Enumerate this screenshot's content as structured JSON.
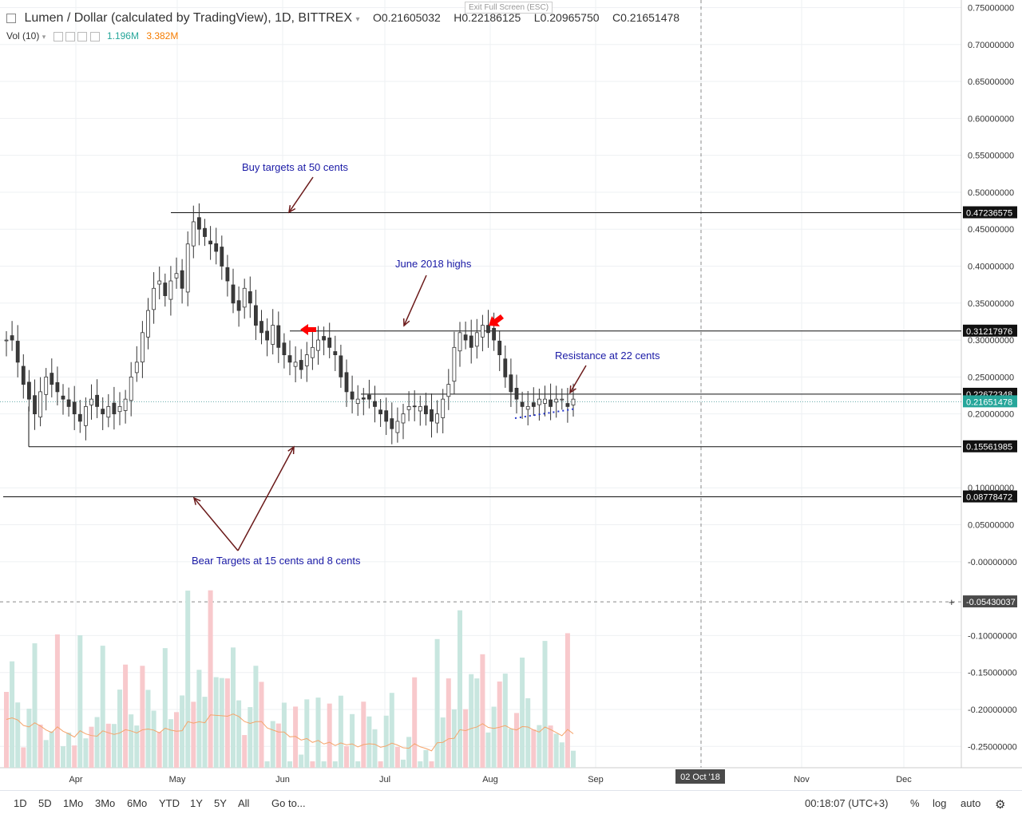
{
  "header": {
    "symbol": "Lumen / Dollar (calculated by TradingView), 1D, BITTREX",
    "open": "O0.21605032",
    "high": "H0.22186125",
    "low": "L0.20965750",
    "close": "C0.21651478"
  },
  "volume_legend": {
    "label": "Vol (10)",
    "value1": "1.196M",
    "value2": "3.382M"
  },
  "exit_fullscreen": "Exit Full Screen (ESC)",
  "price_labels": {
    "res_high": "0.47236575",
    "june_high": "0.31217976",
    "resistance": "0.22672348",
    "last": "0.21651478",
    "support1": "0.15561985",
    "support2": "0.08778472",
    "crosshair": "-0.05430037"
  },
  "annotations": {
    "buy_targets": "Buy targets at 50 cents",
    "june_highs": "June 2018 highs",
    "resistance": "Resistance at 22 cents",
    "bear_targets": "Bear Targets at 15 cents and 8 cents"
  },
  "time_axis": {
    "labels": [
      "Apr",
      "May",
      "Jun",
      "Jul",
      "Aug",
      "Sep",
      "Nov",
      "Dec"
    ],
    "highlight": "02 Oct '18"
  },
  "bottom_toolbar": {
    "timeframes": [
      "1D",
      "5D",
      "1Mo",
      "3Mo",
      "6Mo",
      "YTD",
      "1Y",
      "5Y",
      "All"
    ],
    "goto": "Go to...",
    "clock": "00:18:07 (UTC+3)",
    "percent": "%",
    "log": "log",
    "auto": "auto"
  },
  "colors": {
    "up": "#26a69a",
    "down": "#ef5350",
    "annotation_text": "#1a1aa6",
    "arrow": "#6b1a1a",
    "red_arrow": "#ff0000",
    "ma_line": "#f5a46b"
  },
  "chart_data": {
    "type": "candlestick",
    "price_axis": {
      "ylim": [
        -0.285,
        0.76
      ],
      "ticks": [
        "0.75000000",
        "0.70000000",
        "0.65000000",
        "0.60000000",
        "0.55000000",
        "0.50000000",
        "0.45000000",
        "0.40000000",
        "0.35000000",
        "0.30000000",
        "0.25000000",
        "0.20000000",
        "0.10000000",
        "0.05000000",
        "-0.00000000",
        "-0.10000000",
        "-0.15000000",
        "-0.20000000",
        "-0.25000000"
      ]
    },
    "horizontal_levels": [
      0.47236575,
      0.31217976,
      0.22672348,
      0.15561985,
      0.08778472
    ],
    "last_price": 0.21651478,
    "crosshair_price": -0.05430037,
    "series": [
      {
        "name": "Price",
        "values": [
          0.3,
          0.3,
          0.27,
          0.24,
          0.22,
          0.2,
          0.23,
          0.25,
          0.24,
          0.23,
          0.22,
          0.21,
          0.2,
          0.19,
          0.21,
          0.22,
          0.21,
          0.2,
          0.21,
          0.2,
          0.21,
          0.22,
          0.25,
          0.27,
          0.31,
          0.34,
          0.37,
          0.38,
          0.36,
          0.38,
          0.39,
          0.37,
          0.43,
          0.46,
          0.45,
          0.44,
          0.43,
          0.42,
          0.4,
          0.38,
          0.35,
          0.34,
          0.37,
          0.35,
          0.32,
          0.31,
          0.3,
          0.32,
          0.29,
          0.28,
          0.27,
          0.27,
          0.26,
          0.28,
          0.29,
          0.3,
          0.3,
          0.29,
          0.28,
          0.25,
          0.23,
          0.22,
          0.22,
          0.22,
          0.22,
          0.21,
          0.2,
          0.19,
          0.18,
          0.19,
          0.2,
          0.21,
          0.21,
          0.21,
          0.2,
          0.19,
          0.2,
          0.22,
          0.24,
          0.29,
          0.31,
          0.3,
          0.29,
          0.31,
          0.32,
          0.31,
          0.3,
          0.28,
          0.25,
          0.23,
          0.22,
          0.21,
          0.21,
          0.21,
          0.22,
          0.22,
          0.21,
          0.22,
          0.22,
          0.21,
          0.22
        ]
      }
    ]
  }
}
